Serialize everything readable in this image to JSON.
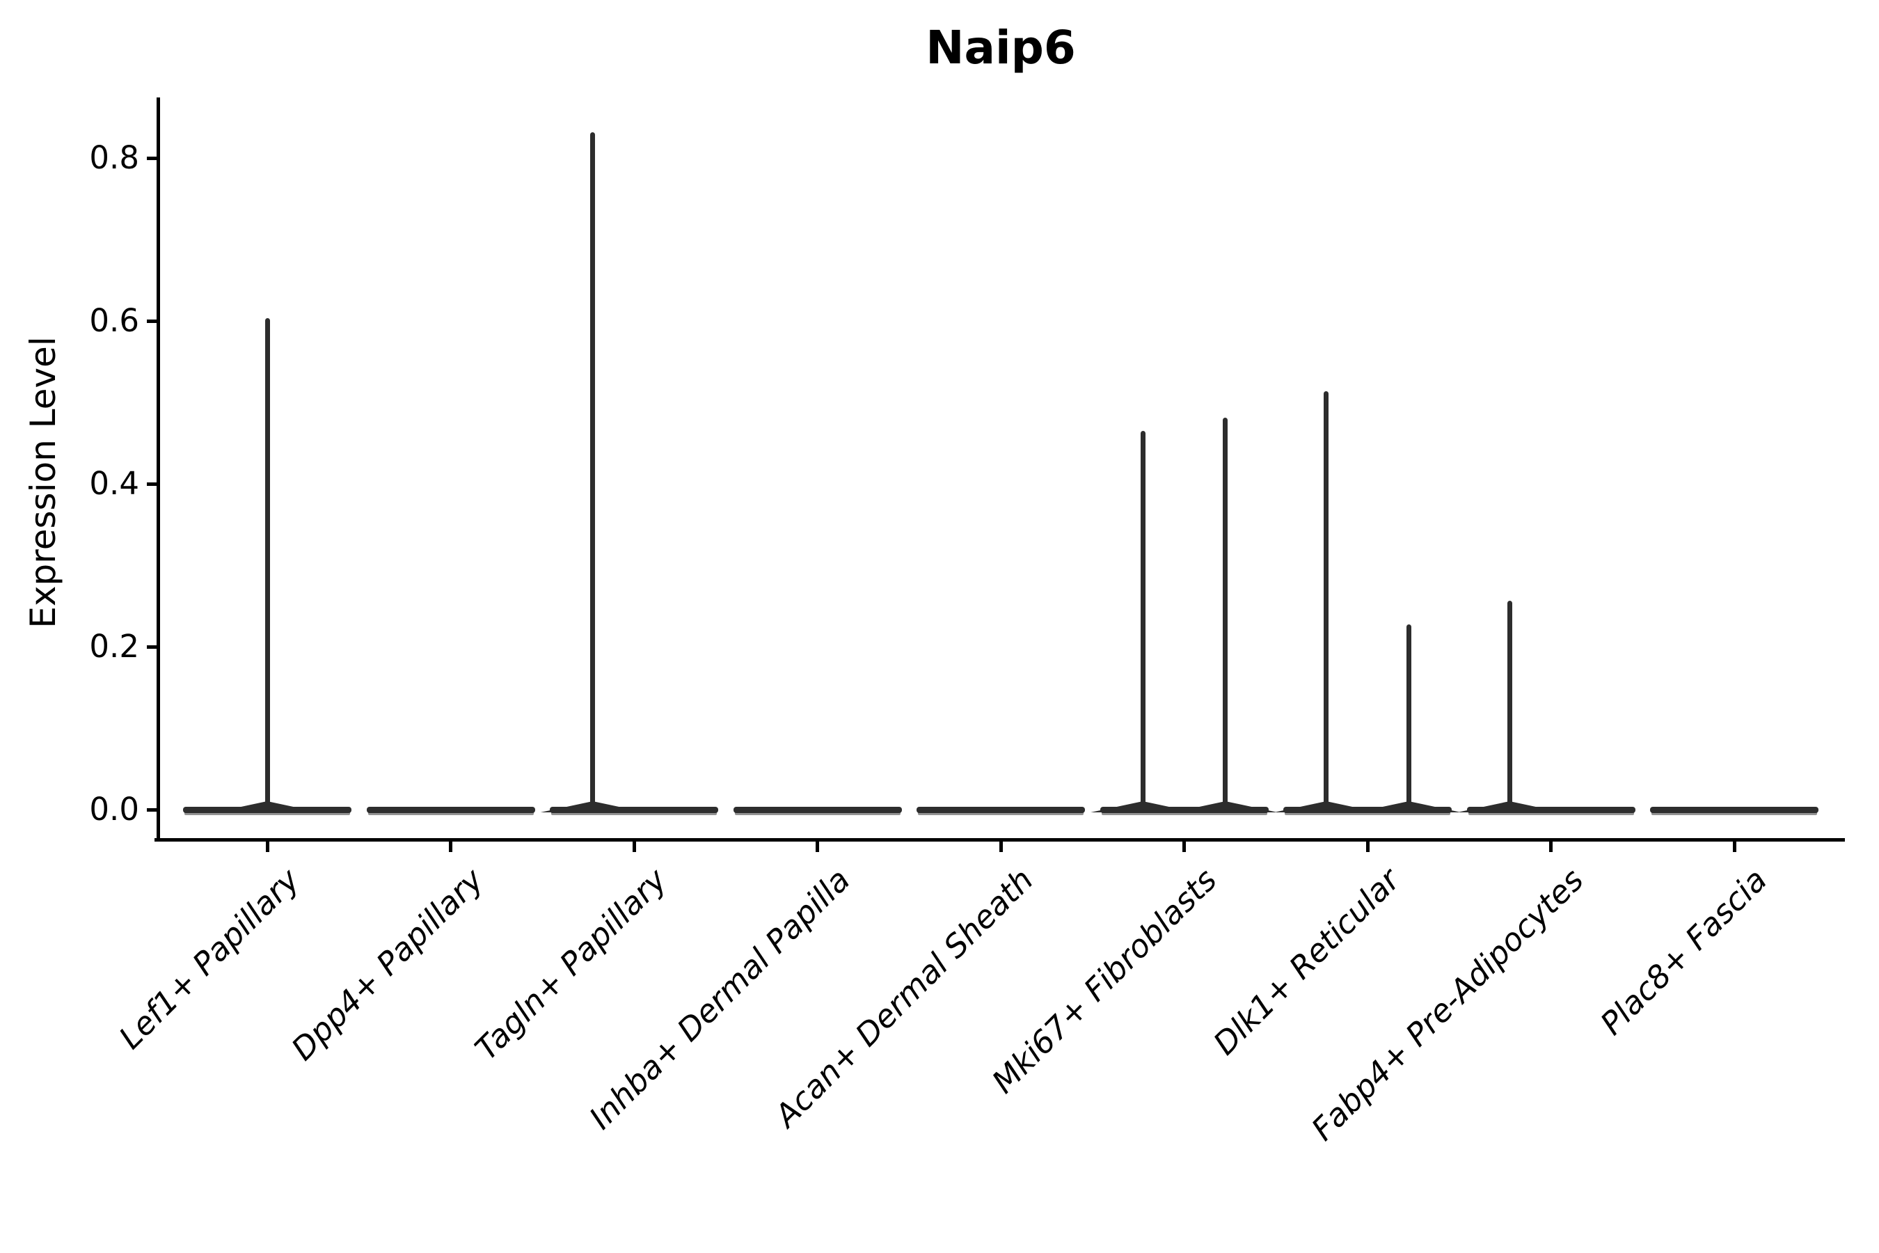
{
  "title": "Naip6",
  "axes": {
    "ylabel": "Expression Level",
    "ytick_labels": [
      "0.0",
      "0.2",
      "0.4",
      "0.6",
      "0.8"
    ],
    "ytick_values": [
      0.0,
      0.2,
      0.4,
      0.6,
      0.8
    ]
  },
  "colors": {
    "violin": "#2d2d2d",
    "axis": "#000000",
    "background": "#ffffff"
  },
  "chart_data": {
    "type": "violin",
    "title": "Naip6",
    "xlabel": "",
    "ylabel": "Expression Level",
    "ylim": [
      0,
      0.87
    ],
    "yticks": [
      0.0,
      0.2,
      0.4,
      0.6,
      0.8
    ],
    "grid": false,
    "legend": null,
    "categories": [
      "Lef1+ Papillary",
      "Dpp4+ Papillary",
      "Tagln+ Papillary",
      "Inhba+ Dermal Papilla",
      "Acan+ Dermal Sheath",
      "Mki67+ Fibroblasts",
      "Dlk1+ Reticular",
      "Fabp4+ Pre-Adipocytes",
      "Plac8+ Fascia"
    ],
    "violins": [
      {
        "category": "Lef1+ Papillary",
        "bulk_at_zero": true,
        "spikes": [
          {
            "offset_frac": 0.0,
            "value": 0.603
          }
        ]
      },
      {
        "category": "Dpp4+ Papillary",
        "bulk_at_zero": true,
        "spikes": []
      },
      {
        "category": "Tagln+ Papillary",
        "bulk_at_zero": true,
        "spikes": [
          {
            "offset_frac": -0.225,
            "value": 0.832
          }
        ]
      },
      {
        "category": "Inhba+ Dermal Papilla",
        "bulk_at_zero": true,
        "spikes": []
      },
      {
        "category": "Acan+ Dermal Sheath",
        "bulk_at_zero": true,
        "spikes": []
      },
      {
        "category": "Mki67+ Fibroblasts",
        "bulk_at_zero": true,
        "spikes": [
          {
            "offset_frac": -0.225,
            "value": 0.465
          },
          {
            "offset_frac": 0.225,
            "value": 0.481
          }
        ]
      },
      {
        "category": "Dlk1+ Reticular",
        "bulk_at_zero": true,
        "spikes": [
          {
            "offset_frac": -0.225,
            "value": 0.514
          },
          {
            "offset_frac": 0.225,
            "value": 0.227
          }
        ]
      },
      {
        "category": "Fabp4+ Pre-Adipocytes",
        "bulk_at_zero": true,
        "spikes": [
          {
            "offset_frac": -0.225,
            "value": 0.256
          }
        ]
      },
      {
        "category": "Plac8+ Fascia",
        "bulk_at_zero": true,
        "spikes": []
      }
    ]
  }
}
